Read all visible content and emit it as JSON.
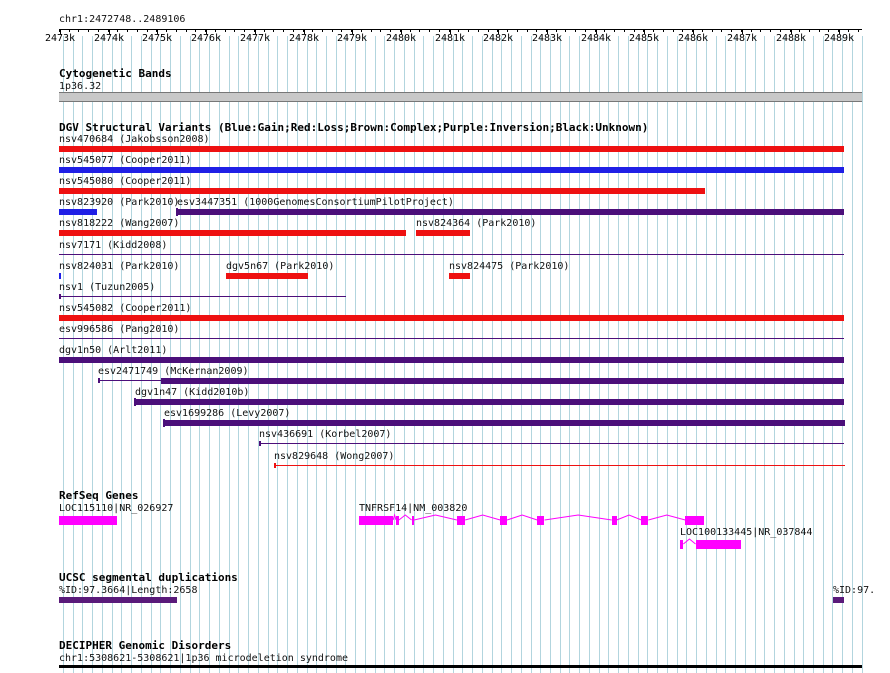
{
  "colors": {
    "gain": "#1f1fe6",
    "loss": "#ee1111",
    "complex": "#8b4513",
    "inversion": "#4b0f7a",
    "unknown": "#000000",
    "gene": "#ff00ff",
    "segdup": "#5a1a7a",
    "grid": "#7fb9c9",
    "separator": "#1a1a6e",
    "band": "#c8c8c8"
  },
  "ruler": {
    "range_label": "chr1:2472748..2489106",
    "ticks": [
      "2473k",
      "2474k",
      "2475k",
      "2476k",
      "2477k",
      "2478k",
      "2479k",
      "2480k",
      "2481k",
      "2482k",
      "2483k",
      "2484k",
      "2485k",
      "2486k",
      "2487k",
      "2488k",
      "2489k"
    ]
  },
  "tracks": {
    "cytoband": {
      "title": "Cytogenetic Bands",
      "band_label": "1p36.32"
    },
    "dgv": {
      "title": "DGV Structural Variants (Blue:Gain;Red:Loss;Brown:Complex;Purple:Inversion;Black:Unknown)",
      "features": [
        {
          "label": "nsv470684 (Jakobsson2008)",
          "start": 2472748,
          "end": 2489106,
          "type": "loss",
          "row": 0
        },
        {
          "label": "nsv545077 (Cooper2011)",
          "start": 2472748,
          "end": 2489106,
          "type": "gain",
          "row": 1
        },
        {
          "label": "nsv545080 (Cooper2011)",
          "start": 2472748,
          "end": 2486240,
          "type": "loss",
          "row": 2
        },
        {
          "label": "nsv823920 (Park2010)",
          "start": 2472748,
          "end": 2473750,
          "type": "gain",
          "row": 3
        },
        {
          "label": "esv3447351 (1000GenomesConsortiumPilotProject)",
          "start": 2475400,
          "end": 2489106,
          "type": "inversion",
          "row": 3
        },
        {
          "label": "nsv818222 (Wang2007)",
          "start": 2472748,
          "end": 2480100,
          "type": "loss",
          "row": 4
        },
        {
          "label": "nsv824364 (Park2010)",
          "start": 2480300,
          "end": 2481400,
          "type": "loss",
          "row": 4
        },
        {
          "label": "nsv7171 (Kidd2008)",
          "start": 2472748,
          "end": 2489106,
          "type": "inversion",
          "row": 5,
          "thin": true
        },
        {
          "label": "nsv824031 (Park2010)",
          "start": 2472748,
          "end": 2473000,
          "type": "gain",
          "row": 6
        },
        {
          "label": "dgv5n67 (Park2010)",
          "start": 2476400,
          "end": 2478080,
          "type": "loss",
          "row": 6
        },
        {
          "label": "nsv824475 (Park2010)",
          "start": 2480990,
          "end": 2481430,
          "type": "loss",
          "row": 6
        },
        {
          "label": "nsv1 (Tuzun2005)",
          "start": 2472748,
          "end": 2478870,
          "type": "inversion",
          "row": 7,
          "thin": true,
          "tick": true
        },
        {
          "label": "nsv545082 (Cooper2011)",
          "start": 2472748,
          "end": 2489106,
          "type": "loss",
          "row": 8
        },
        {
          "label": "esv996586 (Pang2010)",
          "start": 2472748,
          "end": 2489106,
          "type": "inversion",
          "row": 9,
          "thin": true
        },
        {
          "label": "dgv1n50 (Arlt2011)",
          "start": 2472748,
          "end": 2489106,
          "type": "inversion",
          "row": 10
        },
        {
          "label": "esv2471749 (McKernan2009)",
          "start": 2473790,
          "end": 2489106,
          "type": "inversion",
          "row": 11,
          "thin_until": 2475080
        },
        {
          "label": "dgv1n47 (Kidd2010b)",
          "start": 2474540,
          "end": 2489106,
          "type": "inversion",
          "row": 12
        },
        {
          "label": "esv1699286 (Levy2007)",
          "start": 2475130,
          "end": 2489106,
          "type": "inversion",
          "row": 13
        },
        {
          "label": "nsv436691 (Korbel2007)",
          "start": 2477090,
          "end": 2489106,
          "type": "inversion",
          "row": 14,
          "thin": true,
          "tick": true
        },
        {
          "label": "nsv829648 (Wong2007)",
          "start": 2477390,
          "end": 2489106,
          "type": "loss",
          "row": 15,
          "thin": true,
          "tick": true
        }
      ]
    },
    "refseq": {
      "title": "RefSeq Genes",
      "genes": [
        {
          "label": "LOC115110|NR_026927",
          "exons": [
            [
              2472748,
              2474180
            ]
          ],
          "row": 0
        },
        {
          "label": "TNFRSF14|NM_003820",
          "exons": [
            [
              2479140,
              2479840
            ],
            [
              2479900,
              2479960
            ],
            [
              2480220,
              2480270
            ],
            [
              2481150,
              2481320
            ],
            [
              2482040,
              2482180
            ],
            [
              2482800,
              2482950
            ],
            [
              2484330,
              2484430
            ],
            [
              2484940,
              2485080
            ],
            [
              2485840,
              2486230
            ]
          ],
          "row": 0
        },
        {
          "label": "LOC100133445|NR_037844",
          "exons": [
            [
              2485740,
              2485800
            ],
            [
              2486050,
              2486980
            ]
          ],
          "row": 1
        }
      ]
    },
    "segdup": {
      "title": "UCSC segmental duplications",
      "features": [
        {
          "label": "%ID:97.3664|Length:2658",
          "start": 2472748,
          "end": 2475400
        },
        {
          "label": "%ID:97.",
          "start": 2488880,
          "end": 2489106
        }
      ]
    },
    "decipher": {
      "title": "DECIPHER Genomic Disorders",
      "feature_label": "chr1:5308621-5308621|1p36 microdeletion syndrome"
    }
  }
}
